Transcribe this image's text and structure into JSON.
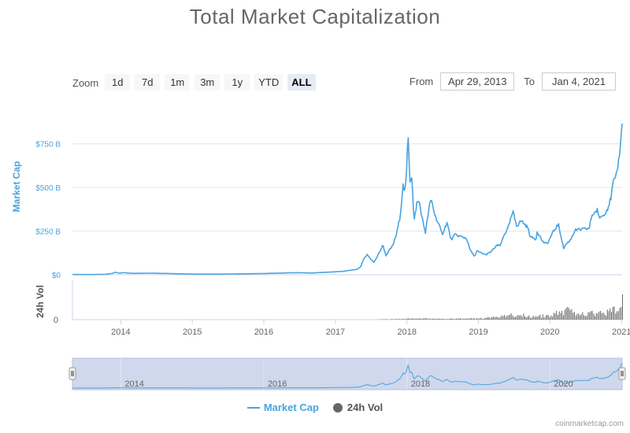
{
  "title": "Total Market Capitalization",
  "zoom": {
    "label": "Zoom",
    "buttons": [
      "1d",
      "7d",
      "1m",
      "3m",
      "1y",
      "YTD",
      "ALL"
    ],
    "active": "ALL"
  },
  "range": {
    "from_label": "From",
    "from_value": "Apr 29, 2013",
    "to_label": "To",
    "to_value": "Jan 4, 2021"
  },
  "legend": {
    "market_cap": "Market Cap",
    "volume": "24h Vol"
  },
  "credit": "coinmarketcap.com",
  "chart_data": {
    "type": "line",
    "ylabel": "Market Cap",
    "volume_label": "24h Vol",
    "y_ticks": [
      "$0",
      "$250 B",
      "$500 B",
      "$750 B"
    ],
    "y_tick_values": [
      0,
      250,
      500,
      750
    ],
    "ylim": [
      0,
      875
    ],
    "x_ticks": [
      "2014",
      "2015",
      "2016",
      "2017",
      "2018",
      "2019",
      "2020",
      "2021"
    ],
    "volume_tick": "0",
    "navigator_ticks": [
      "2014",
      "2016",
      "2018",
      "2020"
    ],
    "grid": true,
    "legend_position": "bottom-center",
    "colors": {
      "market_cap": "#4aa3df",
      "volume": "#666666",
      "navigator_fill": "#ccd6eb"
    },
    "series": [
      {
        "name": "Market Cap",
        "unit": "billion USD",
        "points": [
          [
            "2013-04-29",
            1.6
          ],
          [
            "2013-08-01",
            1.3
          ],
          [
            "2013-10-15",
            2.5
          ],
          [
            "2013-11-20",
            8
          ],
          [
            "2013-12-04",
            15
          ],
          [
            "2013-12-20",
            9
          ],
          [
            "2014-01-15",
            12
          ],
          [
            "2014-03-01",
            8
          ],
          [
            "2014-06-01",
            9
          ],
          [
            "2014-09-01",
            7
          ],
          [
            "2015-01-15",
            3.5
          ],
          [
            "2015-06-01",
            3.8
          ],
          [
            "2015-11-05",
            6
          ],
          [
            "2016-01-01",
            7
          ],
          [
            "2016-06-15",
            12
          ],
          [
            "2016-09-01",
            10
          ],
          [
            "2016-12-31",
            17
          ],
          [
            "2017-02-15",
            20
          ],
          [
            "2017-03-15",
            25
          ],
          [
            "2017-04-20",
            30
          ],
          [
            "2017-05-10",
            45
          ],
          [
            "2017-05-25",
            88
          ],
          [
            "2017-06-12",
            115
          ],
          [
            "2017-07-16",
            70
          ],
          [
            "2017-08-05",
            110
          ],
          [
            "2017-09-01",
            170
          ],
          [
            "2017-09-15",
            110
          ],
          [
            "2017-10-20",
            165
          ],
          [
            "2017-11-08",
            230
          ],
          [
            "2017-11-25",
            320
          ],
          [
            "2017-12-07",
            440
          ],
          [
            "2017-12-10",
            520
          ],
          [
            "2017-12-22",
            470
          ],
          [
            "2017-12-30",
            580
          ],
          [
            "2018-01-07",
            830
          ],
          [
            "2018-01-16",
            540
          ],
          [
            "2018-01-26",
            570
          ],
          [
            "2018-02-06",
            300
          ],
          [
            "2018-02-20",
            410
          ],
          [
            "2018-03-05",
            420
          ],
          [
            "2018-03-20",
            320
          ],
          [
            "2018-04-06",
            240
          ],
          [
            "2018-04-25",
            390
          ],
          [
            "2018-05-05",
            430
          ],
          [
            "2018-05-25",
            340
          ],
          [
            "2018-06-12",
            290
          ],
          [
            "2018-06-30",
            230
          ],
          [
            "2018-07-25",
            300
          ],
          [
            "2018-08-14",
            200
          ],
          [
            "2018-09-05",
            230
          ],
          [
            "2018-09-28",
            220
          ],
          [
            "2018-10-15",
            215
          ],
          [
            "2018-11-01",
            210
          ],
          [
            "2018-11-20",
            140
          ],
          [
            "2018-12-14",
            105
          ],
          [
            "2018-12-24",
            135
          ],
          [
            "2019-01-15",
            125
          ],
          [
            "2019-02-08",
            115
          ],
          [
            "2019-03-05",
            130
          ],
          [
            "2019-04-02",
            165
          ],
          [
            "2019-04-25",
            170
          ],
          [
            "2019-05-12",
            230
          ],
          [
            "2019-06-01",
            265
          ],
          [
            "2019-06-26",
            360
          ],
          [
            "2019-07-16",
            280
          ],
          [
            "2019-08-08",
            310
          ],
          [
            "2019-09-10",
            270
          ],
          [
            "2019-09-25",
            215
          ],
          [
            "2019-10-23",
            205
          ],
          [
            "2019-10-28",
            250
          ],
          [
            "2019-11-25",
            190
          ],
          [
            "2019-12-18",
            175
          ],
          [
            "2020-01-15",
            240
          ],
          [
            "2020-02-13",
            290
          ],
          [
            "2020-03-12",
            150
          ],
          [
            "2020-03-20",
            170
          ],
          [
            "2020-04-15",
            200
          ],
          [
            "2020-05-08",
            255
          ],
          [
            "2020-06-15",
            260
          ],
          [
            "2020-07-20",
            265
          ],
          [
            "2020-08-02",
            340
          ],
          [
            "2020-08-30",
            370
          ],
          [
            "2020-09-05",
            330
          ],
          [
            "2020-09-25",
            335
          ],
          [
            "2020-10-22",
            380
          ],
          [
            "2020-11-08",
            440
          ],
          [
            "2020-11-24",
            560
          ],
          [
            "2020-11-27",
            520
          ],
          [
            "2020-12-04",
            560
          ],
          [
            "2020-12-17",
            650
          ],
          [
            "2020-12-27",
            760
          ],
          [
            "2021-01-02",
            820
          ],
          [
            "2021-01-04",
            880
          ]
        ]
      },
      {
        "name": "24h Vol",
        "unit": "billion USD",
        "points": [
          [
            "2013-04-29",
            0.1
          ],
          [
            "2017-06-01",
            1
          ],
          [
            "2017-12-01",
            10
          ],
          [
            "2018-01-05",
            25
          ],
          [
            "2018-06-01",
            12
          ],
          [
            "2019-01-01",
            20
          ],
          [
            "2019-03-01",
            30
          ],
          [
            "2019-05-15",
            60
          ],
          [
            "2019-07-01",
            80
          ],
          [
            "2019-10-01",
            55
          ],
          [
            "2020-01-01",
            65
          ],
          [
            "2020-03-13",
            150
          ],
          [
            "2020-06-01",
            85
          ],
          [
            "2020-09-01",
            110
          ],
          [
            "2020-12-01",
            150
          ],
          [
            "2020-12-20",
            230
          ],
          [
            "2021-01-02",
            450
          ],
          [
            "2021-01-04",
            550
          ]
        ]
      }
    ]
  }
}
